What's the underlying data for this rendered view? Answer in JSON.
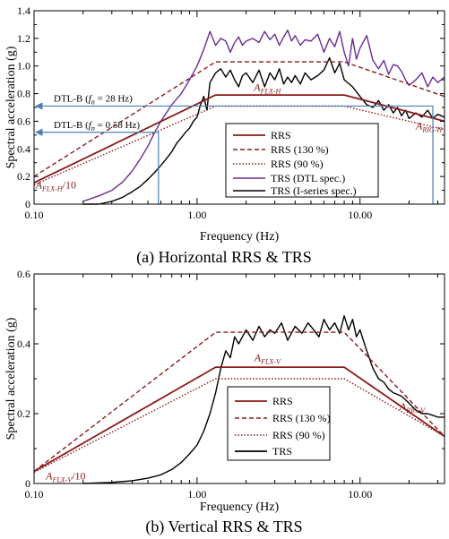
{
  "chart_data": [
    {
      "type": "line",
      "caption": "(a) Horizontal RRS & TRS",
      "xlabel": "Frequency (Hz)",
      "ylabel": "Spectral acceleration (g)",
      "xscale": "log",
      "xlim": [
        0.1,
        33
      ],
      "ylim": [
        0,
        1.4
      ],
      "xticks": [
        0.1,
        1,
        10
      ],
      "xtick_labels": [
        "0.10",
        "1.00",
        "10.00"
      ],
      "yticks": [
        0,
        0.2,
        0.4,
        0.6,
        0.8,
        1.0,
        1.2,
        1.4
      ],
      "ytick_labels": [
        "0",
        "0.2",
        "0.4",
        "0.6",
        "0.8",
        "1.0",
        "1.2",
        "1.4"
      ],
      "grid": false,
      "legend_position": "lower-right",
      "colors": {
        "rrs": "#8b1a1a",
        "dtl": "#6a2c91",
        "iseries": "#000000",
        "marker": "#4a7fb5"
      },
      "series": [
        {
          "name": "RRS",
          "style": "solid",
          "color": "#8b1a1a",
          "x": [
            0.1,
            1.3,
            8.0,
            33.0
          ],
          "y": [
            0.155,
            0.79,
            0.79,
            0.6
          ]
        },
        {
          "name": "RRS (130 %)",
          "style": "dashed",
          "color": "#8b1a1a",
          "x": [
            0.1,
            1.3,
            8.0,
            33.0
          ],
          "y": [
            0.2,
            1.03,
            1.03,
            0.78
          ]
        },
        {
          "name": "RRS (90 %)",
          "style": "dotted",
          "color": "#8b1a1a",
          "x": [
            0.1,
            1.3,
            8.0,
            33.0
          ],
          "y": [
            0.14,
            0.71,
            0.71,
            0.54
          ]
        },
        {
          "name": "TRS (DTL spec.)",
          "style": "solid",
          "color": "#6a2c91",
          "x": [
            0.2,
            0.25,
            0.3,
            0.35,
            0.4,
            0.45,
            0.5,
            0.55,
            0.6,
            0.7,
            0.8,
            0.9,
            1.0,
            1.1,
            1.2,
            1.3,
            1.4,
            1.5,
            1.6,
            1.7,
            1.8,
            1.9,
            2.0,
            2.2,
            2.4,
            2.6,
            2.8,
            3.0,
            3.2,
            3.4,
            3.6,
            3.8,
            4.0,
            4.3,
            4.6,
            5.0,
            5.5,
            6.0,
            6.5,
            7.0,
            7.5,
            8.0,
            8.5,
            9.0,
            9.5,
            10.0,
            11.0,
            12.0,
            13.0,
            14.0,
            15.0,
            16.0,
            17.0,
            18.0,
            19.0,
            20.0,
            22.0,
            24.0,
            26.0,
            28.0,
            30.0,
            33.0
          ],
          "y": [
            0.02,
            0.06,
            0.1,
            0.16,
            0.24,
            0.33,
            0.42,
            0.52,
            0.6,
            0.72,
            0.8,
            0.9,
            1.0,
            1.12,
            1.25,
            1.15,
            1.2,
            1.18,
            1.1,
            1.17,
            1.21,
            1.15,
            1.18,
            1.2,
            1.17,
            1.25,
            1.19,
            1.23,
            1.15,
            1.21,
            1.26,
            1.18,
            1.22,
            1.15,
            1.19,
            1.18,
            1.23,
            1.1,
            1.2,
            1.14,
            1.25,
            1.1,
            1.0,
            1.2,
            1.05,
            1.13,
            1.22,
            1.04,
            0.98,
            1.04,
            0.94,
            1.01,
            1.0,
            0.96,
            0.9,
            0.86,
            0.9,
            0.95,
            0.85,
            0.92,
            0.88,
            0.92
          ]
        },
        {
          "name": "TRS (I-series spec.)",
          "style": "solid",
          "color": "#000000",
          "x": [
            0.2,
            0.25,
            0.3,
            0.35,
            0.4,
            0.45,
            0.5,
            0.55,
            0.6,
            0.65,
            0.7,
            0.75,
            0.8,
            0.85,
            0.9,
            0.95,
            1.0,
            1.05,
            1.1,
            1.15,
            1.2,
            1.3,
            1.4,
            1.5,
            1.6,
            1.7,
            1.8,
            1.9,
            2.0,
            2.2,
            2.4,
            2.6,
            2.8,
            3.0,
            3.2,
            3.4,
            3.6,
            3.8,
            4.0,
            4.3,
            4.6,
            5.0,
            5.5,
            6.0,
            6.5,
            7.0,
            7.5,
            8.0,
            9.0,
            10.0,
            11.0,
            12.0,
            13.0,
            14.0,
            15.0,
            16.0,
            17.0,
            18.0,
            19.0,
            20.0,
            22.0,
            24.0,
            26.0,
            28.0,
            30.0,
            33.0
          ],
          "y": [
            0.0,
            0.0,
            0.02,
            0.05,
            0.09,
            0.13,
            0.18,
            0.23,
            0.28,
            0.33,
            0.38,
            0.44,
            0.48,
            0.52,
            0.55,
            0.6,
            0.63,
            0.72,
            0.78,
            0.68,
            0.88,
            0.95,
            0.98,
            0.92,
            0.97,
            0.9,
            0.85,
            0.93,
            0.95,
            0.88,
            0.97,
            0.85,
            0.95,
            0.9,
            0.98,
            0.87,
            0.92,
            0.88,
            0.93,
            0.87,
            0.95,
            0.9,
            0.93,
            0.97,
            1.06,
            0.95,
            1.02,
            0.9,
            0.85,
            0.78,
            0.72,
            0.7,
            0.75,
            0.68,
            0.72,
            0.66,
            0.7,
            0.64,
            0.68,
            0.62,
            0.66,
            0.63,
            0.68,
            0.62,
            0.65,
            0.63
          ]
        }
      ],
      "annotations": {
        "flx_label": {
          "base": "A",
          "sub": "FLX-H",
          "x": 2.7,
          "y": 0.82
        },
        "rig_label": {
          "base": "A",
          "sub": "RIG-H",
          "x": 22.0,
          "y": 0.54
        },
        "low_label": {
          "base": "A",
          "sub": "FLX-H",
          "suffix": "/10",
          "x": 0.102,
          "y": 0.115
        },
        "dtl_28": {
          "prefix": "DTL-B (",
          "f": "f",
          "sub": "n",
          "suffix": " = 28 Hz)",
          "y": 0.71,
          "x_end": 28.0
        },
        "dtl_058": {
          "prefix": "DTL-B (",
          "f": "f",
          "sub": "n",
          "suffix": " = 0.58 Hz)",
          "y": 0.52,
          "x_end": 0.58
        }
      }
    },
    {
      "type": "line",
      "caption": "(b) Vertical RRS & TRS",
      "xlabel": "Frequency (Hz)",
      "ylabel": "Spectral acceleration (g)",
      "xscale": "log",
      "xlim": [
        0.1,
        33
      ],
      "ylim": [
        0,
        0.6
      ],
      "xticks": [
        0.1,
        1,
        10
      ],
      "xtick_labels": [
        "0.10",
        "1.00",
        "10.00"
      ],
      "yticks": [
        0,
        0.2,
        0.4,
        0.6
      ],
      "ytick_labels": [
        "0",
        "0.2",
        "0.4",
        "0.6"
      ],
      "grid": false,
      "legend_position": "lower-center",
      "colors": {
        "rrs": "#8b1a1a",
        "trs": "#000000"
      },
      "series": [
        {
          "name": "RRS",
          "style": "solid",
          "color": "#8b1a1a",
          "x": [
            0.1,
            1.3,
            8.0,
            33.0
          ],
          "y": [
            0.035,
            0.333,
            0.333,
            0.135
          ]
        },
        {
          "name": "RRS (130 %)",
          "style": "dashed",
          "color": "#8b1a1a",
          "x": [
            0.1,
            1.3,
            8.0,
            33.0
          ],
          "y": [
            0.035,
            0.433,
            0.433,
            0.135
          ]
        },
        {
          "name": "RRS (90 %)",
          "style": "dotted",
          "color": "#8b1a1a",
          "x": [
            0.1,
            1.3,
            8.0,
            33.0
          ],
          "y": [
            0.032,
            0.3,
            0.3,
            0.135
          ]
        },
        {
          "name": "TRS",
          "style": "solid",
          "color": "#000000",
          "x": [
            0.2,
            0.3,
            0.4,
            0.5,
            0.6,
            0.7,
            0.8,
            0.9,
            1.0,
            1.1,
            1.2,
            1.3,
            1.4,
            1.5,
            1.6,
            1.7,
            1.8,
            2.0,
            2.2,
            2.4,
            2.6,
            2.8,
            3.0,
            3.3,
            3.6,
            4.0,
            4.4,
            4.8,
            5.2,
            5.6,
            6.0,
            6.5,
            7.0,
            7.5,
            8.0,
            8.5,
            9.0,
            9.5,
            10.0,
            11.0,
            12.0,
            13.0,
            14.0,
            15.0,
            16.0,
            18.0,
            20.0,
            22.0,
            24.0,
            26.0,
            28.0,
            30.0,
            33.0
          ],
          "y": [
            0.0,
            0.003,
            0.008,
            0.015,
            0.025,
            0.04,
            0.06,
            0.085,
            0.11,
            0.15,
            0.2,
            0.26,
            0.33,
            0.38,
            0.36,
            0.42,
            0.4,
            0.44,
            0.41,
            0.45,
            0.42,
            0.44,
            0.43,
            0.46,
            0.41,
            0.45,
            0.43,
            0.46,
            0.44,
            0.42,
            0.47,
            0.44,
            0.46,
            0.43,
            0.48,
            0.44,
            0.47,
            0.42,
            0.44,
            0.38,
            0.33,
            0.3,
            0.29,
            0.27,
            0.26,
            0.25,
            0.23,
            0.21,
            0.2,
            0.2,
            0.195,
            0.19,
            0.19
          ]
        }
      ],
      "annotations": {
        "flx_label": {
          "base": "A",
          "sub": "FLX-V",
          "x": 2.7,
          "y": 0.35
        },
        "rig_label": {
          "base": "A",
          "sub": "RIG-V",
          "x": 17.5,
          "y": 0.21
        },
        "low_label": {
          "base": "A",
          "sub": "FLX-V",
          "suffix": "/10",
          "x": 0.118,
          "y": 0.012
        }
      }
    }
  ]
}
